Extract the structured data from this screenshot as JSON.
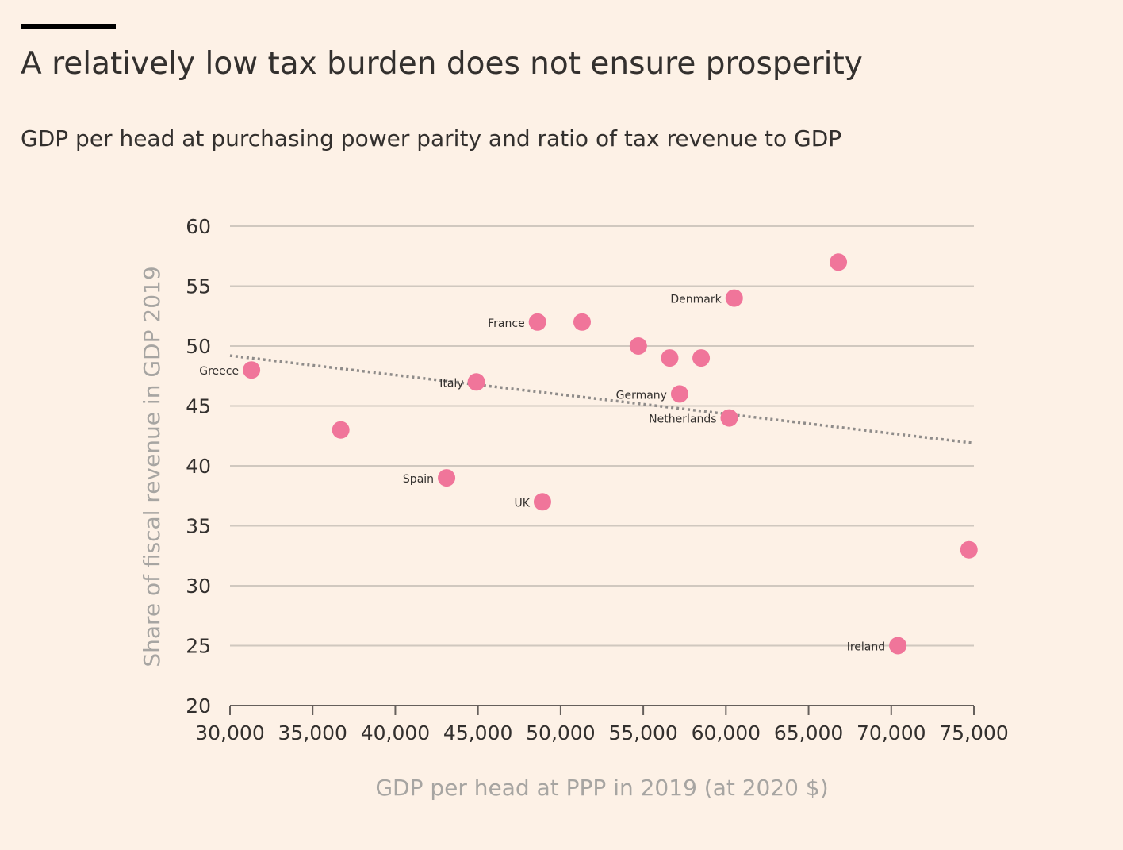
{
  "header": {
    "title": "A relatively low tax burden does not ensure prosperity",
    "subtitle": "GDP per head at purchasing power parity and ratio of tax revenue to GDP"
  },
  "colors": {
    "background": "#fdf1e6",
    "point": "#f0759a",
    "gridline": "#d0c8bf",
    "trendline": "#8f8c8a",
    "text": "#33302e",
    "axis_title": "#a7a5a2"
  },
  "chart_data": {
    "type": "scatter",
    "title": "A relatively low tax burden does not ensure prosperity",
    "subtitle": "GDP per head at purchasing power parity and ratio of tax revenue to GDP",
    "xlabel": "GDP per head at PPP in 2019 (at 2020 $)",
    "ylabel": "Share of fiscal revenue in GDP 2019",
    "xlim": [
      30000,
      75000
    ],
    "ylim": [
      20,
      60
    ],
    "x_ticks": [
      30000,
      35000,
      40000,
      45000,
      50000,
      55000,
      60000,
      65000,
      70000,
      75000
    ],
    "x_tick_labels": [
      "30,000",
      "35,000",
      "40,000",
      "45,000",
      "50,000",
      "55,000",
      "60,000",
      "65,000",
      "70,000",
      "75,000"
    ],
    "y_ticks": [
      20,
      25,
      30,
      35,
      40,
      45,
      50,
      55,
      60
    ],
    "y_tick_labels": [
      "20",
      "25",
      "30",
      "35",
      "40",
      "45",
      "50",
      "55",
      "60"
    ],
    "grid": true,
    "points": [
      {
        "x": 31300,
        "y": 48,
        "label": "Greece",
        "label_side": "left"
      },
      {
        "x": 36700,
        "y": 43,
        "label": ""
      },
      {
        "x": 43100,
        "y": 39,
        "label": "Spain",
        "label_side": "left"
      },
      {
        "x": 44900,
        "y": 47,
        "label": "Italy",
        "label_side": "left"
      },
      {
        "x": 48600,
        "y": 52,
        "label": "France",
        "label_side": "left"
      },
      {
        "x": 48900,
        "y": 37,
        "label": "UK",
        "label_side": "left"
      },
      {
        "x": 51300,
        "y": 52,
        "label": ""
      },
      {
        "x": 54700,
        "y": 50,
        "label": ""
      },
      {
        "x": 56600,
        "y": 49,
        "label": ""
      },
      {
        "x": 57200,
        "y": 46,
        "label": "Germany",
        "label_side": "left"
      },
      {
        "x": 58500,
        "y": 49,
        "label": ""
      },
      {
        "x": 60200,
        "y": 44,
        "label": "Netherlands",
        "label_side": "left"
      },
      {
        "x": 60500,
        "y": 54,
        "label": "Denmark",
        "label_side": "left"
      },
      {
        "x": 66800,
        "y": 57,
        "label": ""
      },
      {
        "x": 70400,
        "y": 25,
        "label": "Ireland",
        "label_side": "left"
      },
      {
        "x": 74700,
        "y": 33,
        "label": ""
      }
    ],
    "trendline": {
      "style": "dotted",
      "points": [
        {
          "x": 30000,
          "y": 49.2
        },
        {
          "x": 75000,
          "y": 41.9
        }
      ]
    }
  }
}
